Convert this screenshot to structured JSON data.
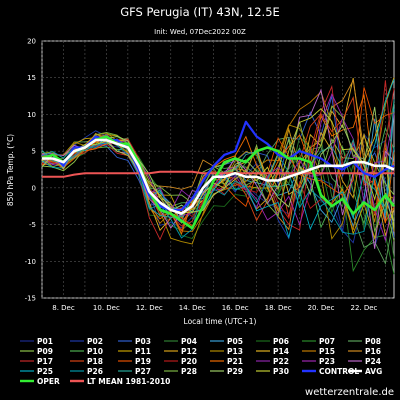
{
  "header": {
    "title": "GFS Perugia (IT) 43N, 12.5E",
    "init": "Init: Wed, 07Dec2022 00Z"
  },
  "footer": {
    "watermark": "wetterzentrale.de"
  },
  "chart_data": {
    "type": "line",
    "xlabel": "Local time (UTC+1)",
    "ylabel": "850 hPa Temp. (°C)",
    "ylim": [
      -15,
      20
    ],
    "yticks": [
      -15,
      -10,
      -5,
      0,
      5,
      10,
      15,
      20
    ],
    "xlim_days": [
      7,
      23.4
    ],
    "xtick_labels": [
      "8. Dec",
      "10. Dec",
      "12. Dec",
      "14. Dec",
      "16. Dec",
      "18. Dec",
      "20. Dec",
      "22. Dec"
    ],
    "xtick_days": [
      8,
      10,
      12,
      14,
      16,
      18,
      20,
      22
    ],
    "grid": true,
    "legend_placement": "below chart",
    "series_colors": {
      "P01": "#1a2a8c",
      "P02": "#1f3aa8",
      "P03": "#2f5fd0",
      "P04": "#2e7d32",
      "P05": "#3a9fd8",
      "P06": "#1b6b1b",
      "P07": "#2a8a2a",
      "P08": "#5aa05a",
      "P09": "#8bc34a",
      "P10": "#4caf50",
      "P11": "#c6a000",
      "P12": "#d4a017",
      "P13": "#b08a00",
      "P14": "#e0b020",
      "P15": "#c07a00",
      "P16": "#d08a20",
      "P17": "#c62828",
      "P18": "#d84315",
      "P19": "#e65100",
      "P20": "#b71c1c",
      "P21": "#ef6c00",
      "P22": "#8e24aa",
      "P23": "#9c27b0",
      "P24": "#ba68c8",
      "P25": "#00acc1",
      "P26": "#0097a7",
      "P27": "#26a69a",
      "P28": "#7cb342",
      "P29": "#9ccc65",
      "P30": "#c0ca33",
      "CONTROL": "#2233ff",
      "AVG": "#ffffff",
      "OPER": "#33ee33",
      "LT MEAN 1981-2010": "#ee5555"
    },
    "legend": [
      "P01",
      "P02",
      "P03",
      "P04",
      "P05",
      "P06",
      "P07",
      "P08",
      "P09",
      "P10",
      "P11",
      "P12",
      "P13",
      "P14",
      "P15",
      "P16",
      "P17",
      "P18",
      "P19",
      "P20",
      "P21",
      "P22",
      "P23",
      "P24",
      "P25",
      "P26",
      "P27",
      "P28",
      "P29",
      "P30",
      "CONTROL",
      "AVG",
      "OPER",
      "LT MEAN 1981-2010"
    ],
    "x_days": [
      7.0,
      7.5,
      8.0,
      8.5,
      9.0,
      9.5,
      10.0,
      10.5,
      11.0,
      11.5,
      12.0,
      12.5,
      13.0,
      13.5,
      14.0,
      14.5,
      15.0,
      15.5,
      16.0,
      16.5,
      17.0,
      17.5,
      18.0,
      18.5,
      19.0,
      19.5,
      20.0,
      20.5,
      21.0,
      21.5,
      22.0,
      22.5,
      23.0,
      23.4
    ],
    "series": [
      {
        "name": "OPER",
        "values": [
          4.0,
          4.5,
          3.5,
          5.0,
          5.5,
          6.5,
          7.0,
          6.0,
          6.0,
          3.5,
          -0.5,
          -3.0,
          -3.5,
          -4.5,
          -5.5,
          -2.5,
          1.0,
          3.5,
          4.0,
          3.5,
          5.0,
          5.5,
          5.0,
          4.0,
          4.0,
          3.5,
          -1.0,
          -2.5,
          -1.5,
          -3.5,
          -2.0,
          -3.0,
          -1.0,
          -2.5
        ]
      },
      {
        "name": "AVG",
        "values": [
          4.0,
          4.0,
          3.5,
          5.0,
          5.5,
          6.5,
          6.5,
          6.0,
          5.5,
          3.0,
          -0.5,
          -2.0,
          -3.0,
          -3.5,
          -2.5,
          0.0,
          1.5,
          1.5,
          2.0,
          1.5,
          1.5,
          1.0,
          1.0,
          1.5,
          2.0,
          2.5,
          3.0,
          3.0,
          3.0,
          3.5,
          3.5,
          3.0,
          3.0,
          2.5
        ]
      },
      {
        "name": "CONTROL",
        "values": [
          4.0,
          4.5,
          3.0,
          5.5,
          5.5,
          7.0,
          6.5,
          6.5,
          5.5,
          2.5,
          -1.0,
          -2.5,
          -3.0,
          -3.0,
          -1.5,
          1.0,
          3.0,
          4.5,
          5.0,
          9.0,
          7.0,
          6.0,
          4.5,
          4.0,
          5.0,
          4.5,
          4.0,
          3.0,
          2.5,
          3.5,
          2.0,
          1.5,
          2.5,
          3.0
        ]
      },
      {
        "name": "LT MEAN 1981-2010",
        "values": [
          1.5,
          1.5,
          1.5,
          1.8,
          2.0,
          2.0,
          2.0,
          2.0,
          2.0,
          2.0,
          2.0,
          2.2,
          2.2,
          2.2,
          2.2,
          2.0,
          2.0,
          2.0,
          2.0,
          2.0,
          2.0,
          2.0,
          2.0,
          2.0,
          2.0,
          2.0,
          2.0,
          2.0,
          2.0,
          2.0,
          2.0,
          2.0,
          2.0,
          2.0
        ]
      }
    ]
  }
}
